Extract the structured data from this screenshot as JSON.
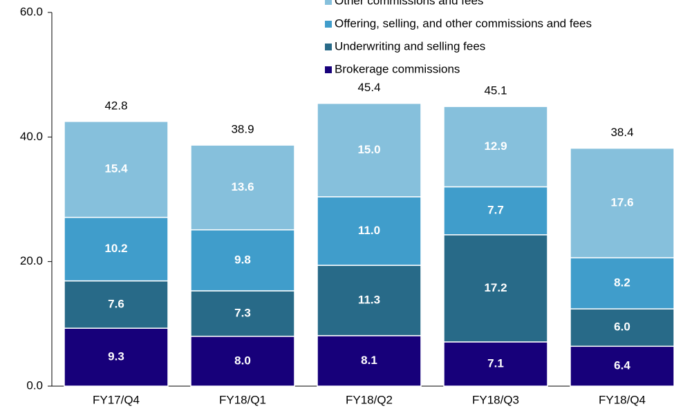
{
  "chart_data": {
    "type": "stacked_bar",
    "categories": [
      "FY17/Q4",
      "FY18/Q1",
      "FY18/Q2",
      "FY18/Q3",
      "FY18/Q4"
    ],
    "series": [
      {
        "name": "Brokerage commissions",
        "color": "#17007a",
        "values": [
          9.3,
          8.0,
          8.1,
          7.1,
          6.4
        ],
        "value_labels": [
          "9.3",
          "8.0",
          "8.1",
          "7.1",
          "6.4"
        ]
      },
      {
        "name": "Underwriting and selling fees",
        "color": "#286a88",
        "values": [
          7.6,
          7.3,
          11.3,
          17.2,
          6.0
        ],
        "value_labels": [
          "7.6",
          "7.3",
          "11.3",
          "17.2",
          "6.0"
        ]
      },
      {
        "name": "Offering, selling, and other commissions and fees",
        "color": "#409dcb",
        "values": [
          10.2,
          9.8,
          11.0,
          7.7,
          8.2
        ],
        "value_labels": [
          "10.2",
          "9.8",
          "11.0",
          "7.7",
          "8.2"
        ]
      },
      {
        "name": "Other commissions and fees",
        "color": "#86c0dc",
        "values": [
          15.4,
          13.6,
          15.0,
          12.9,
          17.6
        ],
        "value_labels": [
          "15.4",
          "13.6",
          "15.0",
          "12.9",
          "17.6"
        ]
      }
    ],
    "totals": [
      42.8,
      38.9,
      45.4,
      45.1,
      38.4
    ],
    "ylim": [
      0,
      60
    ],
    "yticks": [
      {
        "value": 0,
        "label": "0.0"
      },
      {
        "value": 20,
        "label": "20.0"
      },
      {
        "value": 40,
        "label": "40.0"
      },
      {
        "value": 60,
        "label": "60.0"
      }
    ],
    "grid": false
  }
}
